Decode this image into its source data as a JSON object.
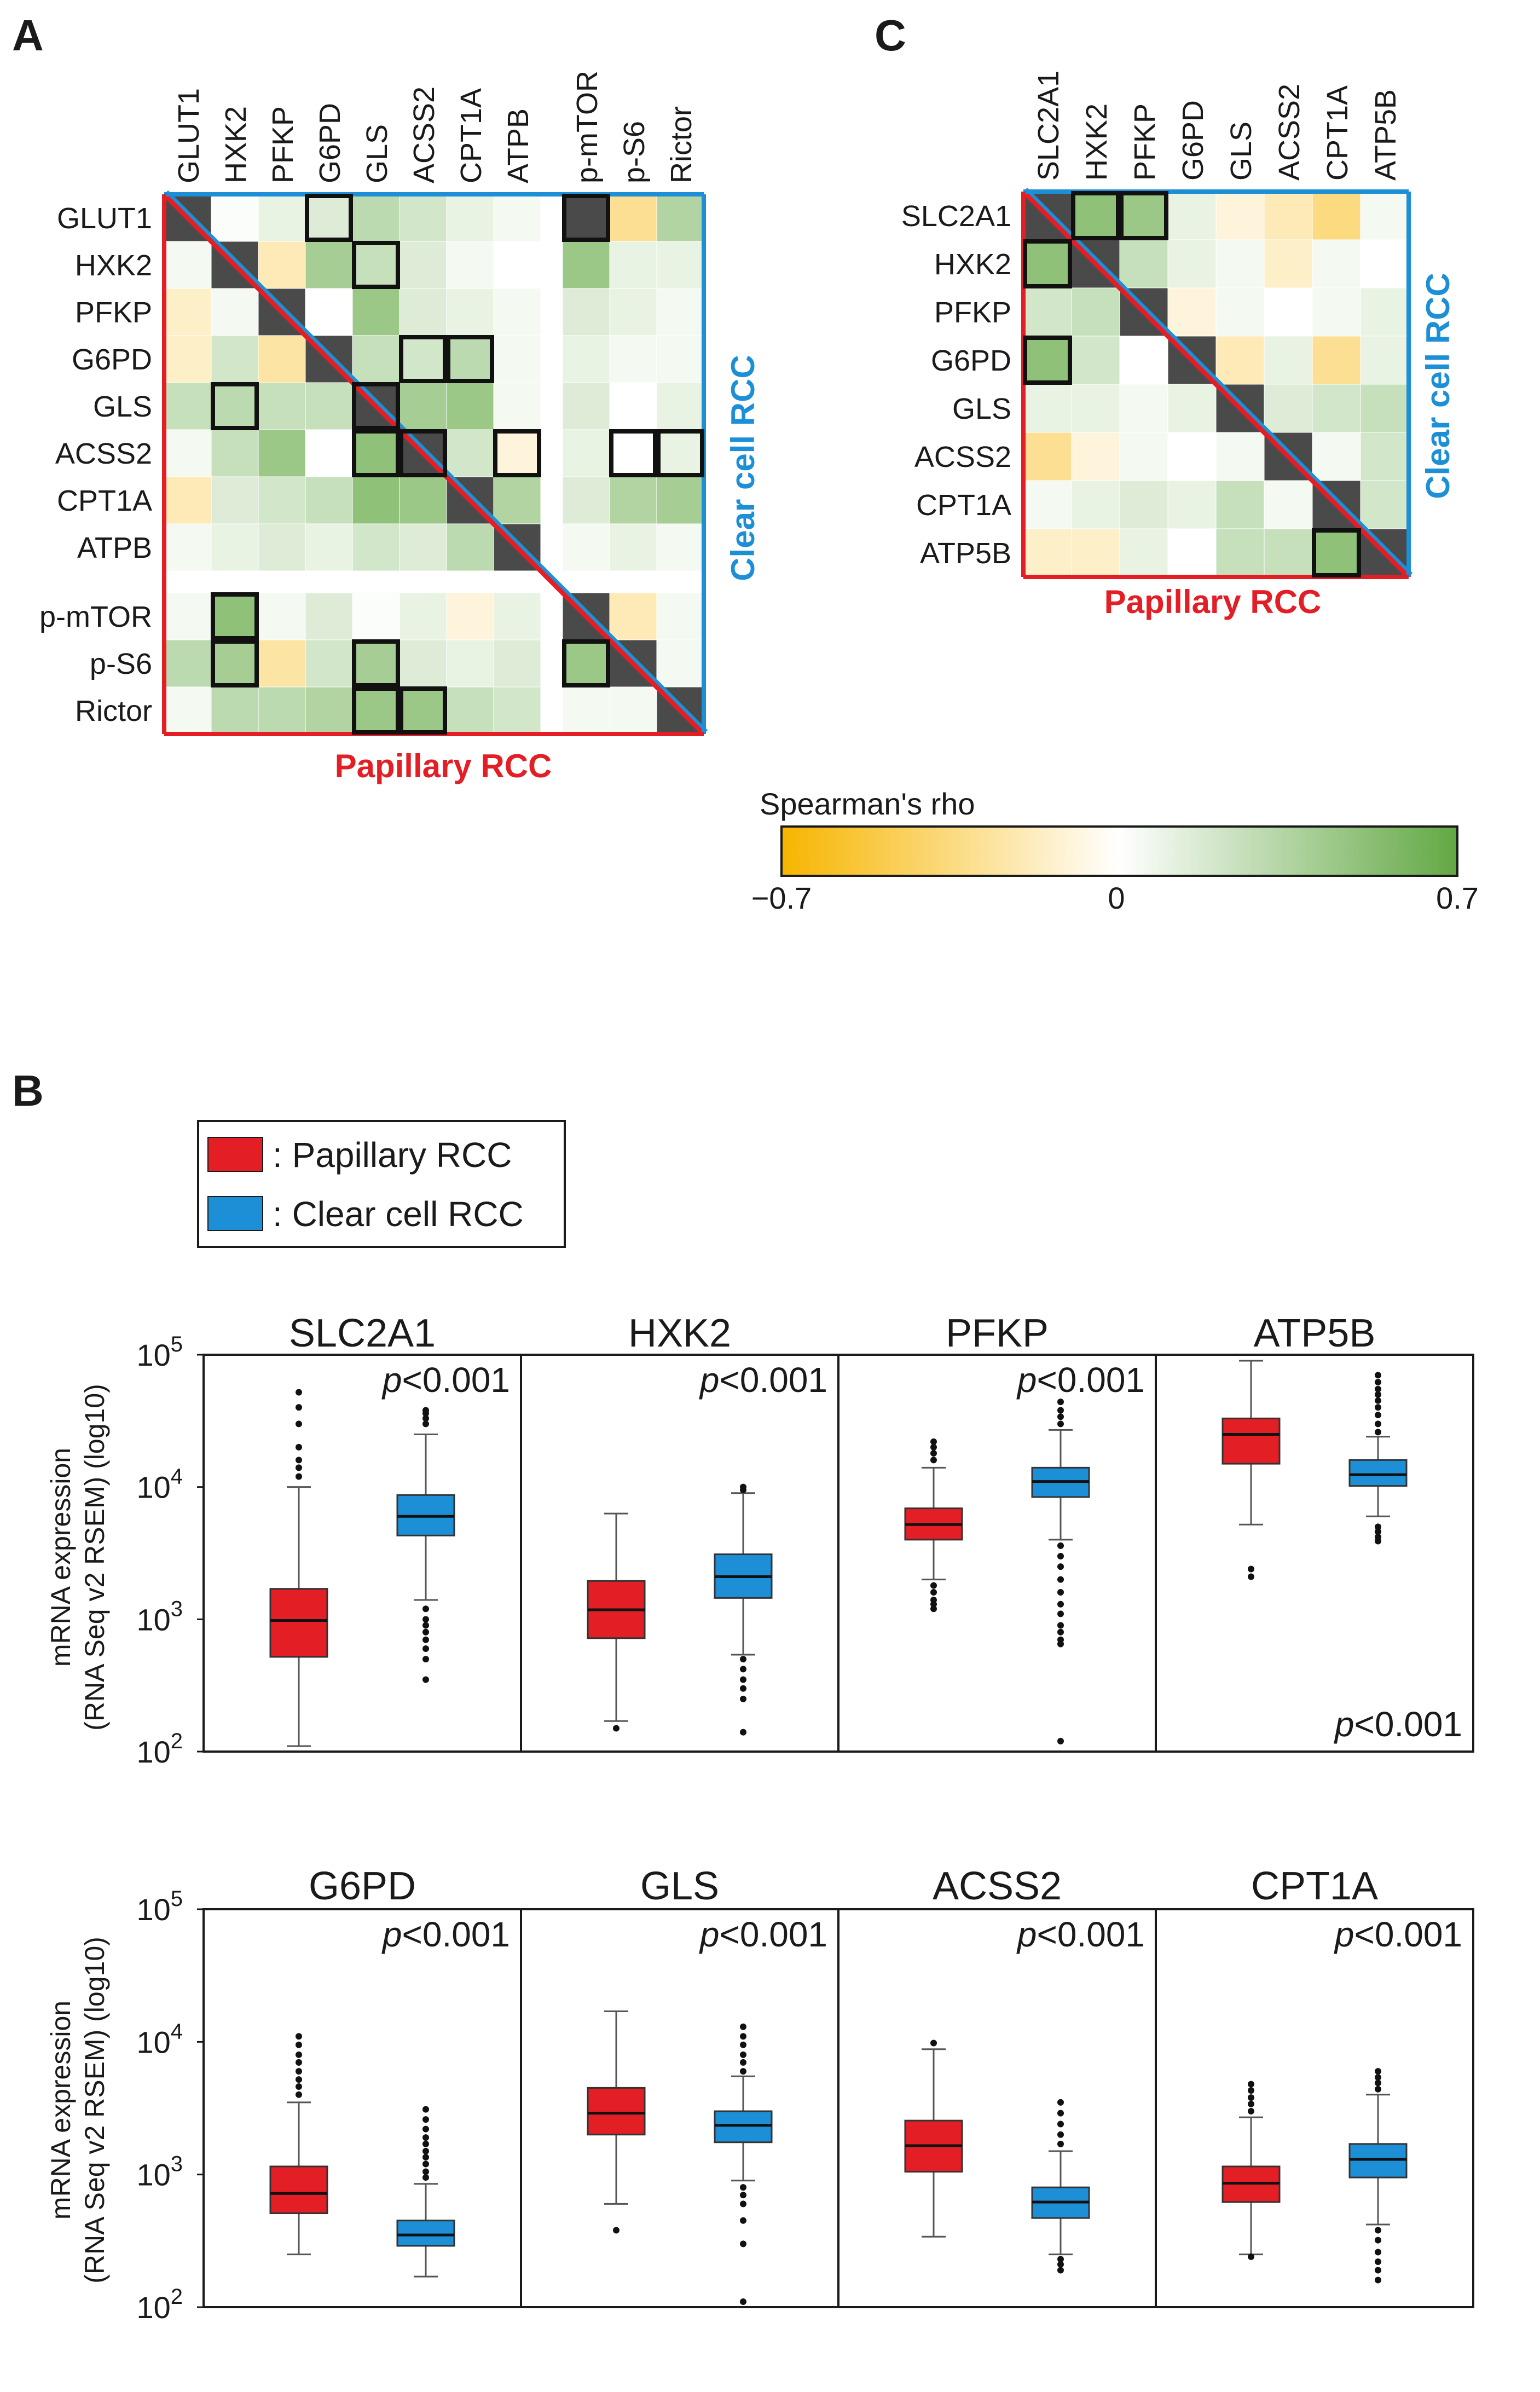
{
  "panel_labels": {
    "a": "A",
    "b": "B",
    "c": "C"
  },
  "colors": {
    "papillary": "#e31e25",
    "clear_cell": "#1d8fd6",
    "diagonal": "#4a4a4a",
    "negative": "#f7b500",
    "zero": "#ffffff",
    "positive": "#63a844"
  },
  "heatmap_a": {
    "genes": [
      "GLUT1",
      "HXK2",
      "PFKP",
      "G6PD",
      "GLS",
      "ACSS2",
      "CPT1A",
      "ATPB",
      "p-mTOR",
      "p-S6",
      "Rictor"
    ],
    "upper_triangle": "Clear cell RCC",
    "lower_triangle": "Papillary RCC"
  },
  "heatmap_c": {
    "genes": [
      "SLC2A1",
      "HXK2",
      "PFKP",
      "G6PD",
      "GLS",
      "ACSS2",
      "CPT1A",
      "ATP5B"
    ],
    "upper_triangle": "Clear cell RCC",
    "lower_triangle": "Papillary RCC"
  },
  "colorbar": {
    "title": "Spearman's rho",
    "min_label": "−0.7",
    "mid_label": "0",
    "max_label": "0.7"
  },
  "legend": {
    "papillary": ": Papillary RCC",
    "clear_cell": ": Clear cell RCC"
  },
  "boxplot_axis": {
    "ylabel_line1": "mRNA expression",
    "ylabel_line2": "(RNA Seq v2 RSEM) (log10)",
    "ticks": [
      {
        "base": "10",
        "exp": "2"
      },
      {
        "base": "10",
        "exp": "3"
      },
      {
        "base": "10",
        "exp": "4"
      },
      {
        "base": "10",
        "exp": "5"
      }
    ]
  },
  "chart_data": [
    {
      "type": "heatmap",
      "title": "A",
      "metric": "Spearman's rho",
      "range": [
        -0.7,
        0.7
      ],
      "rows": [
        "GLUT1",
        "HXK2",
        "PFKP",
        "G6PD",
        "GLS",
        "ACSS2",
        "CPT1A",
        "ATPB",
        "p-mTOR",
        "p-S6",
        "Rictor"
      ],
      "cols": [
        "GLUT1",
        "HXK2",
        "PFKP",
        "G6PD",
        "GLS",
        "ACSS2",
        "CPT1A",
        "ATPB",
        "p-mTOR",
        "p-S6",
        "Rictor"
      ],
      "values": [
        [
          null,
          0.02,
          0.1,
          0.15,
          0.3,
          0.2,
          0.1,
          0.05,
          null,
          -0.3,
          0.35
        ],
        [
          0.05,
          null,
          -0.2,
          0.4,
          0.25,
          0.15,
          0.05,
          0.0,
          0.45,
          0.1,
          0.1
        ],
        [
          -0.15,
          0.05,
          null,
          0.0,
          0.45,
          0.15,
          0.1,
          0.05,
          0.15,
          0.1,
          0.05
        ],
        [
          -0.15,
          0.2,
          -0.25,
          null,
          0.25,
          0.2,
          0.3,
          0.05,
          0.1,
          0.05,
          0.05
        ],
        [
          0.25,
          0.3,
          0.25,
          0.25,
          null,
          0.4,
          0.45,
          0.05,
          0.15,
          0.0,
          0.1
        ],
        [
          0.05,
          0.25,
          0.45,
          0.0,
          0.5,
          null,
          0.2,
          -0.1,
          0.1,
          0.0,
          0.1
        ],
        [
          -0.2,
          0.15,
          0.2,
          0.25,
          0.5,
          0.45,
          null,
          0.35,
          0.15,
          0.35,
          0.4
        ],
        [
          0.05,
          0.1,
          0.15,
          0.1,
          0.2,
          0.15,
          0.3,
          null,
          0.05,
          0.1,
          0.05
        ],
        [
          0.05,
          0.5,
          0.05,
          0.15,
          0.02,
          0.1,
          -0.1,
          0.1,
          null,
          -0.2,
          0.05
        ],
        [
          0.3,
          0.4,
          -0.25,
          0.2,
          0.4,
          0.15,
          0.1,
          0.15,
          0.45,
          null,
          0.05
        ],
        [
          0.05,
          0.3,
          0.3,
          0.35,
          0.45,
          0.45,
          0.25,
          0.2,
          0.05,
          0.05,
          null
        ]
      ],
      "boxed_cells": [
        [
          1,
          4
        ],
        [
          1,
          9
        ],
        [
          2,
          5
        ],
        [
          4,
          6
        ],
        [
          4,
          7
        ],
        [
          5,
          2
        ],
        [
          5,
          5
        ],
        [
          6,
          5
        ],
        [
          6,
          6
        ],
        [
          6,
          8
        ],
        [
          6,
          10
        ],
        [
          6,
          11
        ],
        [
          9,
          2
        ],
        [
          10,
          2
        ],
        [
          10,
          5
        ],
        [
          10,
          9
        ],
        [
          11,
          5
        ],
        [
          11,
          6
        ]
      ]
    },
    {
      "type": "heatmap",
      "title": "C",
      "metric": "Spearman's rho",
      "range": [
        -0.7,
        0.7
      ],
      "rows": [
        "SLC2A1",
        "HXK2",
        "PFKP",
        "G6PD",
        "GLS",
        "ACSS2",
        "CPT1A",
        "ATP5B"
      ],
      "cols": [
        "SLC2A1",
        "HXK2",
        "PFKP",
        "G6PD",
        "GLS",
        "ACSS2",
        "CPT1A",
        "ATP5B"
      ],
      "values": [
        [
          null,
          0.5,
          0.45,
          0.1,
          -0.1,
          -0.2,
          -0.35,
          0.05
        ],
        [
          0.5,
          null,
          0.25,
          0.1,
          0.05,
          -0.15,
          0.05,
          0.0
        ],
        [
          0.2,
          0.25,
          null,
          -0.1,
          0.05,
          0.0,
          0.05,
          0.1
        ],
        [
          0.5,
          0.2,
          0.0,
          null,
          -0.2,
          0.1,
          -0.3,
          0.1
        ],
        [
          0.1,
          0.1,
          0.05,
          0.1,
          null,
          0.15,
          0.2,
          0.25
        ],
        [
          -0.3,
          -0.1,
          0.05,
          0.0,
          0.05,
          null,
          0.05,
          0.2
        ],
        [
          0.05,
          0.1,
          0.15,
          0.1,
          0.25,
          0.05,
          null,
          0.2
        ],
        [
          -0.15,
          -0.15,
          0.1,
          0.0,
          0.25,
          0.25,
          0.5,
          null
        ]
      ],
      "boxed_cells": [
        [
          1,
          2
        ],
        [
          1,
          3
        ],
        [
          2,
          1
        ],
        [
          4,
          1
        ],
        [
          8,
          7
        ]
      ]
    },
    {
      "type": "box",
      "title": "B",
      "ylabel": "mRNA expression (RNA Seq v2 RSEM) (log10)",
      "yscale": "log10",
      "ylim": [
        100,
        100000
      ],
      "series_names": [
        "Papillary RCC",
        "Clear cell RCC"
      ],
      "genes": [
        {
          "name": "SLC2A1",
          "p": "p<0.001",
          "p_pos": "top",
          "papillary": {
            "whisker_low": 110,
            "q1": 520,
            "median": 980,
            "q3": 1700,
            "whisker_high": 10000,
            "outliers": [
              12000,
              14000,
              16000,
              20000,
              30000,
              40000,
              52000
            ]
          },
          "clear_cell": {
            "whisker_low": 1400,
            "q1": 4300,
            "median": 6000,
            "q3": 8700,
            "whisker_high": 25000,
            "outliers": [
              1200,
              1000,
              900,
              800,
              700,
              600,
              500,
              350,
              30000,
              33000,
              36000,
              38000
            ]
          }
        },
        {
          "name": "HXK2",
          "p": "p<0.001",
          "p_pos": "top",
          "papillary": {
            "whisker_low": 170,
            "q1": 720,
            "median": 1180,
            "q3": 1950,
            "whisker_high": 6300,
            "outliers": [
              150
            ]
          },
          "clear_cell": {
            "whisker_low": 540,
            "q1": 1450,
            "median": 2100,
            "q3": 3100,
            "whisker_high": 9000,
            "outliers": [
              500,
              420,
              350,
              300,
              250,
              140,
              9500,
              10000
            ]
          }
        },
        {
          "name": "PFKP",
          "p": "p<0.001",
          "p_pos": "top",
          "papillary": {
            "whisker_low": 2000,
            "q1": 4000,
            "median": 5200,
            "q3": 6900,
            "whisker_high": 14000,
            "outliers": [
              1800,
              1600,
              1400,
              1300,
              1200,
              16000,
              18000,
              20000,
              22000
            ]
          },
          "clear_cell": {
            "whisker_low": 4000,
            "q1": 8400,
            "median": 11000,
            "q3": 14000,
            "whisker_high": 27000,
            "outliers": [
              3600,
              3000,
              2500,
              2000,
              1600,
              1300,
              1100,
              900,
              800,
              700,
              650,
              120,
              30000,
              34000,
              38000,
              44000
            ]
          }
        },
        {
          "name": "ATP5B",
          "p": "p<0.001",
          "p_pos": "bottom",
          "papillary": {
            "whisker_low": 5200,
            "q1": 15000,
            "median": 25000,
            "q3": 33000,
            "whisker_high": 90000,
            "outliers": [
              2400,
              2100
            ]
          },
          "clear_cell": {
            "whisker_low": 6000,
            "q1": 10200,
            "median": 12400,
            "q3": 16000,
            "whisker_high": 24000,
            "outliers": [
              5000,
              4600,
              4200,
              3900,
              26000,
              30000,
              35000,
              40000,
              45000,
              50000,
              55000,
              62000,
              70000
            ]
          }
        },
        {
          "name": "G6PD",
          "p": "p<0.001",
          "p_pos": "top",
          "papillary": {
            "whisker_low": 250,
            "q1": 510,
            "median": 720,
            "q3": 1150,
            "whisker_high": 3500,
            "outliers": [
              4000,
              4600,
              5200,
              6000,
              7000,
              8000,
              9500,
              11000
            ]
          },
          "clear_cell": {
            "whisker_low": 170,
            "q1": 290,
            "median": 350,
            "q3": 450,
            "whisker_high": 850,
            "outliers": [
              950,
              1050,
              1200,
              1350,
              1500,
              1700,
              1900,
              2200,
              2600,
              3100
            ]
          }
        },
        {
          "name": "GLS",
          "p": "p<0.001",
          "p_pos": "top",
          "papillary": {
            "whisker_low": 600,
            "q1": 2000,
            "median": 2900,
            "q3": 4500,
            "whisker_high": 17000,
            "outliers": [
              380
            ]
          },
          "clear_cell": {
            "whisker_low": 900,
            "q1": 1750,
            "median": 2350,
            "q3": 3000,
            "whisker_high": 5500,
            "outliers": [
              800,
              700,
              600,
              450,
              300,
              110,
              6000,
              7000,
              8000,
              9500,
              11000,
              13000
            ]
          }
        },
        {
          "name": "ACSS2",
          "p": "p<0.001",
          "p_pos": "top",
          "papillary": {
            "whisker_low": 340,
            "q1": 1050,
            "median": 1650,
            "q3": 2550,
            "whisker_high": 8800,
            "outliers": [
              9800
            ]
          },
          "clear_cell": {
            "whisker_low": 250,
            "q1": 470,
            "median": 620,
            "q3": 800,
            "whisker_high": 1500,
            "outliers": [
              230,
              210,
              190,
              1700,
              2000,
              2400,
              2900,
              3500
            ]
          }
        },
        {
          "name": "CPT1A",
          "p": "p<0.001",
          "p_pos": "top",
          "papillary": {
            "whisker_low": 250,
            "q1": 620,
            "median": 860,
            "q3": 1150,
            "whisker_high": 2700,
            "outliers": [
              240,
              3000,
              3400,
              3800,
              4300,
              4800
            ]
          },
          "clear_cell": {
            "whisker_low": 420,
            "q1": 950,
            "median": 1300,
            "q3": 1700,
            "whisker_high": 4000,
            "outliers": [
              380,
              320,
              260,
              220,
              190,
              160,
              4400,
              4900,
              5400,
              6000
            ]
          }
        }
      ]
    }
  ]
}
